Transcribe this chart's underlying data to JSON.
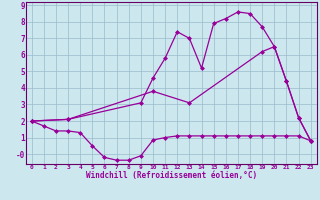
{
  "xlabel": "Windchill (Refroidissement éolien,°C)",
  "bg_color": "#cce8ee",
  "line_color": "#990099",
  "grid_color": "#99bbcc",
  "spine_color": "#660066",
  "xlim": [
    -0.5,
    23.5
  ],
  "ylim": [
    -0.6,
    9.2
  ],
  "xticks": [
    0,
    1,
    2,
    3,
    4,
    5,
    6,
    7,
    8,
    9,
    10,
    11,
    12,
    13,
    14,
    15,
    16,
    17,
    18,
    19,
    20,
    21,
    22,
    23
  ],
  "yticks": [
    0,
    1,
    2,
    3,
    4,
    5,
    6,
    7,
    8,
    9
  ],
  "ytick_labels": [
    "-0",
    "1",
    "2",
    "3",
    "4",
    "5",
    "6",
    "7",
    "8",
    "9"
  ],
  "line1_x": [
    0,
    1,
    2,
    3,
    4,
    5,
    6,
    7,
    8,
    9,
    10,
    11,
    12,
    13,
    14,
    15,
    16,
    17,
    18,
    19,
    20,
    21,
    22,
    23
  ],
  "line1_y": [
    2.0,
    1.7,
    1.4,
    1.4,
    1.3,
    0.5,
    -0.2,
    -0.37,
    -0.37,
    -0.1,
    0.85,
    1.0,
    1.1,
    1.1,
    1.1,
    1.1,
    1.1,
    1.1,
    1.1,
    1.1,
    1.1,
    1.1,
    1.1,
    0.8
  ],
  "line2_x": [
    0,
    3,
    9,
    10,
    11,
    12,
    13,
    14,
    15,
    16,
    17,
    18,
    19,
    20,
    21,
    22,
    23
  ],
  "line2_y": [
    2.0,
    2.1,
    3.1,
    4.6,
    5.8,
    7.4,
    7.0,
    5.2,
    7.9,
    8.2,
    8.6,
    8.5,
    7.7,
    6.5,
    4.4,
    2.2,
    0.8
  ],
  "line3_x": [
    0,
    3,
    10,
    13,
    19,
    20,
    21,
    22,
    23
  ],
  "line3_y": [
    2.0,
    2.1,
    3.8,
    3.1,
    6.2,
    6.5,
    4.4,
    2.2,
    0.8
  ],
  "marker": "D",
  "markersize": 2.0,
  "linewidth": 0.9
}
